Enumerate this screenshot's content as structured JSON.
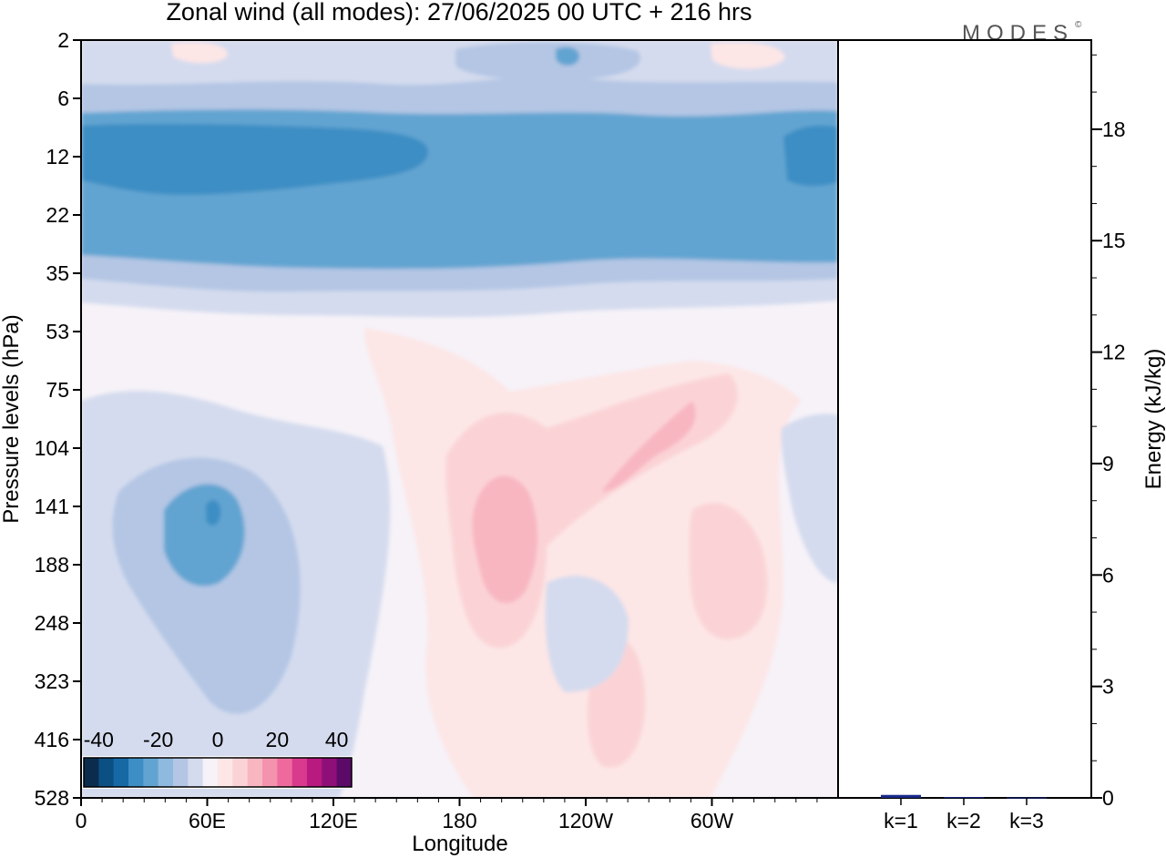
{
  "title": "Zonal wind (all modes):  27/06/2025  00 UTC  + 216 hrs",
  "logo": "MODES",
  "logo_mark": "©",
  "chart_data": [
    {
      "type": "heatmap",
      "xlabel": "Longitude",
      "ylabel": "Pressure levels (hPa)",
      "x_ticks": [
        "0",
        "60E",
        "120E",
        "180",
        "120W",
        "60W"
      ],
      "x_tick_values": [
        0,
        60,
        120,
        180,
        240,
        300
      ],
      "x_range": [
        0,
        360
      ],
      "y_ticks": [
        "2",
        "6",
        "12",
        "22",
        "35",
        "53",
        "75",
        "104",
        "141",
        "188",
        "248",
        "323",
        "416",
        "528"
      ],
      "colorbar": {
        "labels": [
          "-40",
          "-20",
          "0",
          "20",
          "40"
        ],
        "label_values": [
          -40,
          -20,
          0,
          20,
          40
        ],
        "range": [
          -45,
          45
        ],
        "step": 5,
        "colors": [
          "#0b2c4d",
          "#0c4f82",
          "#1769a6",
          "#3d8ec4",
          "#62a4d1",
          "#8fb9de",
          "#b4c6e4",
          "#d4dbee",
          "#f6f2f8",
          "#fde6e6",
          "#fbd3d6",
          "#f8b6c1",
          "#f493ad",
          "#ee6a9d",
          "#d93a8d",
          "#b81a80",
          "#8e0f78",
          "#5c0a68"
        ]
      },
      "note_layers": [
        {
          "level": "neg_weak",
          "value": -7.5
        },
        {
          "level": "neg_mid",
          "value": -12.5
        },
        {
          "level": "neg_strong",
          "value": -22.5
        },
        {
          "level": "neg_max",
          "value": -27.5
        },
        {
          "level": "pos_weak",
          "value": 2.5
        },
        {
          "level": "pos_mid",
          "value": 7.5
        },
        {
          "level": "pos_strong",
          "value": 12.5
        }
      ]
    },
    {
      "type": "bar",
      "ylabel": "Energy (kJ/kg)",
      "categories": [
        "k=1",
        "k=2",
        "k=3"
      ],
      "values": [
        0.08,
        0.02,
        0.01
      ],
      "ylim": [
        0,
        20.4
      ],
      "y_ticks": [
        "0",
        "3",
        "6",
        "9",
        "12",
        "15",
        "18"
      ],
      "y_tick_values": [
        0,
        3,
        6,
        9,
        12,
        15,
        18
      ],
      "bar_colors": [
        "#1a2a8a",
        "#1a2a8a",
        "#1a2a8a"
      ]
    }
  ]
}
